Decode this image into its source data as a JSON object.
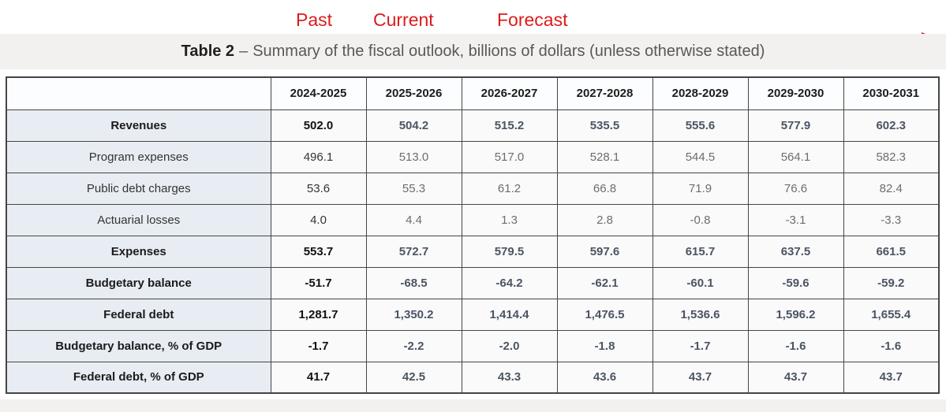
{
  "annotations": {
    "past": "Past",
    "current": "Current",
    "forecast": "Forecast",
    "color": "#dc1b1b"
  },
  "title": {
    "part_bold": "Table 2",
    "separator": "–",
    "part_rest": "Summary of the fiscal outlook, billions of dollars (unless otherwise stated)"
  },
  "table": {
    "columns": [
      "2024-2025",
      "2025-2026",
      "2026-2027",
      "2027-2028",
      "2028-2029",
      "2029-2030",
      "2030-2031"
    ],
    "rows": [
      {
        "label": "Revenues",
        "bold": true,
        "values": [
          "502.0",
          "504.2",
          "515.2",
          "535.5",
          "555.6",
          "577.9",
          "602.3"
        ]
      },
      {
        "label": "Program expenses",
        "bold": false,
        "values": [
          "496.1",
          "513.0",
          "517.0",
          "528.1",
          "544.5",
          "564.1",
          "582.3"
        ]
      },
      {
        "label": "Public debt charges",
        "bold": false,
        "values": [
          "53.6",
          "55.3",
          "61.2",
          "66.8",
          "71.9",
          "76.6",
          "82.4"
        ]
      },
      {
        "label": "Actuarial losses",
        "bold": false,
        "values": [
          "4.0",
          "4.4",
          "1.3",
          "2.8",
          "-0.8",
          "-3.1",
          "-3.3"
        ]
      },
      {
        "label": "Expenses",
        "bold": true,
        "values": [
          "553.7",
          "572.7",
          "579.5",
          "597.6",
          "615.7",
          "637.5",
          "661.5"
        ]
      },
      {
        "label": "Budgetary balance",
        "bold": true,
        "values": [
          "-51.7",
          "-68.5",
          "-64.2",
          "-62.1",
          "-60.1",
          "-59.6",
          "-59.2"
        ]
      },
      {
        "label": "Federal debt",
        "bold": true,
        "values": [
          "1,281.7",
          "1,350.2",
          "1,414.4",
          "1,476.5",
          "1,536.6",
          "1,596.2",
          "1,655.4"
        ]
      },
      {
        "label": "Budgetary balance, % of GDP",
        "bold": true,
        "values": [
          "-1.7",
          "-2.2",
          "-2.0",
          "-1.8",
          "-1.7",
          "-1.6",
          "-1.6"
        ]
      },
      {
        "label": "Federal debt, % of GDP",
        "bold": true,
        "values": [
          "41.7",
          "42.5",
          "43.3",
          "43.6",
          "43.7",
          "43.7",
          "43.7"
        ]
      }
    ]
  }
}
